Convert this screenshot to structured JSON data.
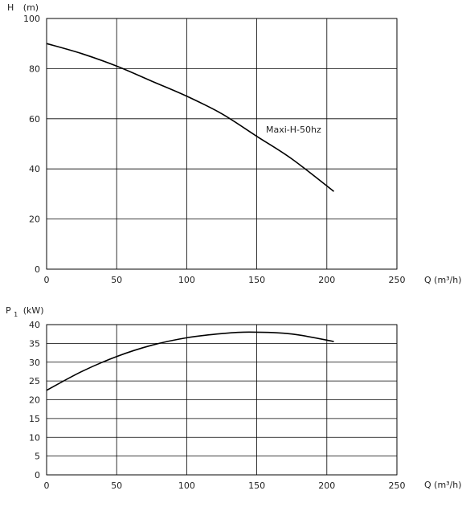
{
  "chart_data": [
    {
      "type": "line",
      "ylabel_main": "H",
      "ylabel_unit": "(m)",
      "xlabel": "Q (m³/h)",
      "xlim": [
        0,
        250
      ],
      "ylim": [
        0,
        100
      ],
      "x_ticks": [
        0,
        50,
        100,
        150,
        200,
        250
      ],
      "y_ticks": [
        0,
        20,
        40,
        60,
        80,
        100
      ],
      "grid": true,
      "series": [
        {
          "name": "Maxi-H-50hz",
          "x": [
            0,
            25,
            50,
            75,
            100,
            125,
            150,
            175,
            205
          ],
          "y": [
            90,
            86,
            81,
            75,
            69,
            62,
            53,
            44,
            31
          ]
        }
      ]
    },
    {
      "type": "line",
      "ylabel_main": "P",
      "ylabel_sub": "1",
      "ylabel_unit": "(kW)",
      "xlabel": "Q (m³/h)",
      "xlim": [
        0,
        250
      ],
      "ylim": [
        0,
        40
      ],
      "x_ticks": [
        0,
        50,
        100,
        150,
        200,
        250
      ],
      "y_ticks": [
        0,
        5,
        10,
        15,
        20,
        25,
        30,
        35,
        40
      ],
      "grid": true,
      "series": [
        {
          "x": [
            0,
            25,
            50,
            75,
            100,
            125,
            145,
            175,
            205
          ],
          "y": [
            22.5,
            27.5,
            31.5,
            34.5,
            36.5,
            37.6,
            38.0,
            37.5,
            35.5
          ]
        }
      ]
    }
  ]
}
